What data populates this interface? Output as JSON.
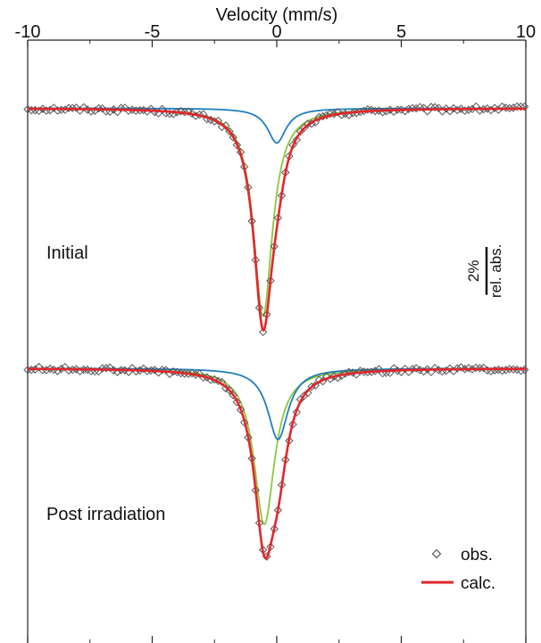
{
  "chart_data": {
    "type": "scatter",
    "xlabel": "Velocity (mm/s)",
    "xlim": [
      -10,
      10
    ],
    "x_ticks": [
      -10,
      -5,
      0,
      5,
      10
    ],
    "x_tick_labels": [
      "-10",
      "-5",
      "0",
      "5",
      "10"
    ],
    "y_axis_shown": false,
    "grid": false,
    "legend": {
      "placement": "bottom-right",
      "obs": "obs.",
      "calc": "calc."
    },
    "scale_bar": {
      "value_label": "2%",
      "unit_label": "rel. abs."
    },
    "panels": [
      {
        "label": "Initial",
        "baseline_pct": 0,
        "ylim_pct": [
          -9.2,
          0.35
        ],
        "components": [
          {
            "center": -0.55,
            "hwhm": 0.46,
            "depth": 8.7,
            "color": "#8dc63f"
          },
          {
            "center": 0.0,
            "hwhm": 0.45,
            "depth": 1.45,
            "color": "#1f7fbf"
          }
        ]
      },
      {
        "label": "Post irradiation",
        "baseline_pct": 0,
        "ylim_pct": [
          -9.6,
          0.35
        ],
        "components": [
          {
            "center": -0.5,
            "hwhm": 0.5,
            "depth": 6.8,
            "color": "#8dc63f"
          },
          {
            "center": 0.05,
            "hwhm": 0.5,
            "depth": 3.1,
            "color": "#1f7fbf"
          }
        ]
      }
    ],
    "series": [
      {
        "name": "obs.",
        "marker": "diamond-open",
        "color": "#555555",
        "x_step": 0.15,
        "noise_pct": 0.1
      },
      {
        "name": "calc.",
        "line": true,
        "color": "#e3262b"
      }
    ]
  }
}
